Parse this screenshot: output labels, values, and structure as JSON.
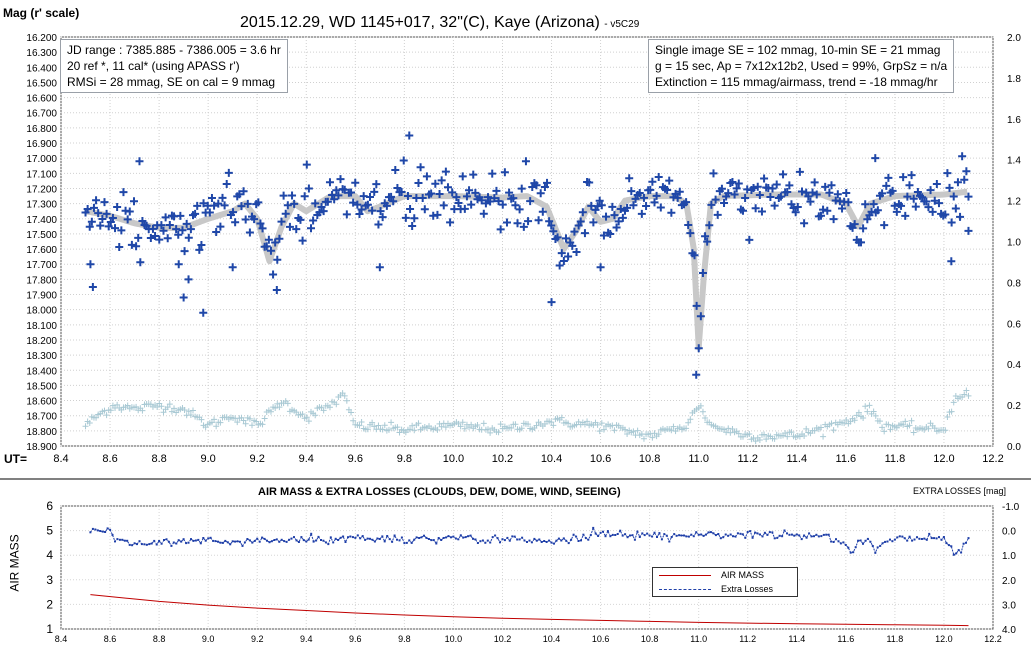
{
  "chart_data": [
    {
      "type": "scatter",
      "title": "2015.12.29,  WD 1145+017,  32\"(C),  Kaye (Arizona)",
      "title_suffix": "- v5C29",
      "ylabel": "Mag (r' scale)",
      "xlabel": "UT=",
      "xlim": [
        8.4,
        12.2
      ],
      "ylim_left": [
        16.2,
        18.9
      ],
      "y_left_inverted": true,
      "ylim_right": [
        0.0,
        2.0
      ],
      "x_ticks": [
        "8.4",
        "8.6",
        "8.8",
        "9.0",
        "9.2",
        "9.4",
        "9.6",
        "9.8",
        "10.0",
        "10.2",
        "10.4",
        "10.6",
        "10.8",
        "11.0",
        "11.2",
        "11.4",
        "11.6",
        "11.8",
        "12.0",
        "12.2"
      ],
      "y_left_ticks": [
        "16.200",
        "16.300",
        "16.400",
        "16.500",
        "16.600",
        "16.700",
        "16.800",
        "16.900",
        "17.000",
        "17.100",
        "17.200",
        "17.300",
        "17.400",
        "17.500",
        "17.600",
        "17.700",
        "17.800",
        "17.900",
        "18.000",
        "18.100",
        "18.200",
        "18.300",
        "18.400",
        "18.500",
        "18.600",
        "18.700",
        "18.800",
        "18.900"
      ],
      "y_right_ticks": [
        "0.0",
        "0.2",
        "0.4",
        "0.6",
        "0.8",
        "1.0",
        "1.2",
        "1.4",
        "1.6",
        "1.8",
        "2.0"
      ],
      "grid": true,
      "info_left": [
        "JD range  : 7385.885 - 7386.005  = 3.6 hr",
        " 20 ref *, 11 cal* (using APASS r')",
        "RMSi = 28 mmag, SE on cal = 9 mmag"
      ],
      "info_right": [
        "Single image SE = 102 mmag, 10-min SE = 21 mmag",
        "g = 15 sec, Ap = 7x12x12b2,  Used = 99%, GrpSz = n/a",
        "Extinction = 115 mmag/airmass,  trend = -18 mmag/hr"
      ],
      "series": [
        {
          "marker": "plus",
          "color": "#1f47a8",
          "axis": "left",
          "trend": [
            [
              8.5,
              17.35
            ],
            [
              8.6,
              17.38
            ],
            [
              8.7,
              17.43
            ],
            [
              8.8,
              17.46
            ],
            [
              8.9,
              17.46
            ],
            [
              9.0,
              17.4
            ],
            [
              9.1,
              17.35
            ],
            [
              9.15,
              17.3
            ],
            [
              9.2,
              17.4
            ],
            [
              9.25,
              17.68
            ],
            [
              9.3,
              17.45
            ],
            [
              9.35,
              17.3
            ],
            [
              9.4,
              17.35
            ],
            [
              9.45,
              17.3
            ],
            [
              9.5,
              17.25
            ],
            [
              9.6,
              17.25
            ],
            [
              9.65,
              17.35
            ],
            [
              9.7,
              17.32
            ],
            [
              9.8,
              17.25
            ],
            [
              10.0,
              17.25
            ],
            [
              10.2,
              17.26
            ],
            [
              10.3,
              17.25
            ],
            [
              10.38,
              17.32
            ],
            [
              10.45,
              17.6
            ],
            [
              10.5,
              17.48
            ],
            [
              10.55,
              17.32
            ],
            [
              10.6,
              17.42
            ],
            [
              10.65,
              17.4
            ],
            [
              10.7,
              17.28
            ],
            [
              10.8,
              17.25
            ],
            [
              10.9,
              17.25
            ],
            [
              10.95,
              17.3
            ],
            [
              10.98,
              17.6
            ],
            [
              11.0,
              18.25
            ],
            [
              11.02,
              17.8
            ],
            [
              11.05,
              17.3
            ],
            [
              11.1,
              17.25
            ],
            [
              11.3,
              17.24
            ],
            [
              11.5,
              17.24
            ],
            [
              11.6,
              17.3
            ],
            [
              11.65,
              17.45
            ],
            [
              11.7,
              17.3
            ],
            [
              11.8,
              17.25
            ],
            [
              12.0,
              17.24
            ],
            [
              12.1,
              17.22
            ]
          ],
          "scatter_sigma": 0.09,
          "outliers": [
            [
              8.52,
              17.7
            ],
            [
              8.53,
              17.85
            ],
            [
              8.72,
              17.02
            ],
            [
              8.88,
              17.7
            ],
            [
              8.9,
              17.92
            ],
            [
              8.92,
              17.8
            ],
            [
              8.98,
              18.02
            ],
            [
              9.1,
              17.72
            ],
            [
              9.28,
              17.87
            ],
            [
              9.7,
              17.72
            ],
            [
              9.82,
              16.85
            ],
            [
              10.4,
              17.95
            ],
            [
              10.6,
              17.72
            ],
            [
              10.99,
              18.43
            ],
            [
              11.72,
              17.0
            ],
            [
              12.03,
              17.68
            ],
            [
              12.1,
              17.48
            ]
          ],
          "n_points": 420
        },
        {
          "marker": "plus",
          "color": "#a9c9d4",
          "axis": "right",
          "baseline": [
            [
              8.5,
              0.1
            ],
            [
              8.55,
              0.15
            ],
            [
              8.62,
              0.2
            ],
            [
              8.7,
              0.18
            ],
            [
              8.8,
              0.2
            ],
            [
              8.9,
              0.18
            ],
            [
              9.0,
              0.1
            ],
            [
              9.1,
              0.15
            ],
            [
              9.2,
              0.1
            ],
            [
              9.3,
              0.22
            ],
            [
              9.4,
              0.14
            ],
            [
              9.5,
              0.2
            ],
            [
              9.55,
              0.25
            ],
            [
              9.6,
              0.1
            ],
            [
              9.8,
              0.08
            ],
            [
              10.0,
              0.1
            ],
            [
              10.2,
              0.08
            ],
            [
              10.4,
              0.12
            ],
            [
              10.6,
              0.1
            ],
            [
              10.8,
              0.05
            ],
            [
              10.95,
              0.1
            ],
            [
              11.0,
              0.2
            ],
            [
              11.05,
              0.1
            ],
            [
              11.2,
              0.05
            ],
            [
              11.4,
              0.05
            ],
            [
              11.6,
              0.12
            ],
            [
              11.7,
              0.18
            ],
            [
              11.75,
              0.1
            ],
            [
              12.0,
              0.08
            ],
            [
              12.05,
              0.25
            ],
            [
              12.1,
              0.25
            ]
          ],
          "n_points": 420
        }
      ]
    },
    {
      "type": "line",
      "title": "AIR MASS & EXTRA LOSSES (CLOUDS, DEW, DOME, WIND, SEEING)",
      "ylabel": "AIR MASS",
      "ylabel_right": "EXTRA LOSSES [mag]",
      "xlim": [
        8.4,
        12.2
      ],
      "ylim_left": [
        1,
        6
      ],
      "ylim_right": [
        -1.0,
        4.0
      ],
      "y_right_inverted": true,
      "x_ticks": [
        "8.4",
        "8.6",
        "8.8",
        "9.0",
        "9.2",
        "9.4",
        "9.6",
        "9.8",
        "10.0",
        "10.2",
        "10.4",
        "10.6",
        "10.8",
        "11.0",
        "11.2",
        "11.4",
        "11.6",
        "11.8",
        "12.0",
        "12.2"
      ],
      "y_left_ticks": [
        "1",
        "2",
        "3",
        "4",
        "5",
        "6"
      ],
      "y_right_ticks": [
        "-1.0",
        "0.0",
        "1.0",
        "2.0",
        "3.0",
        "4.0"
      ],
      "legend": [
        "AIR MASS",
        "Extra Losses"
      ],
      "legend_position": "center-right",
      "series": [
        {
          "name": "AIR MASS",
          "color": "#c00000",
          "axis": "left",
          "x": [
            8.52,
            8.8,
            9.0,
            9.2,
            9.4,
            9.6,
            9.8,
            10.0,
            10.2,
            10.4,
            10.6,
            10.8,
            11.0,
            11.2,
            11.4,
            11.6,
            11.8,
            12.0,
            12.1
          ],
          "y": [
            2.4,
            2.12,
            1.97,
            1.85,
            1.75,
            1.65,
            1.57,
            1.5,
            1.44,
            1.39,
            1.35,
            1.31,
            1.27,
            1.24,
            1.21,
            1.19,
            1.17,
            1.15,
            1.14
          ]
        },
        {
          "name": "Extra Losses",
          "color": "#1f3fa8",
          "axis": "right",
          "x": [
            8.52,
            8.6,
            8.62,
            8.7,
            8.8,
            8.9,
            9.0,
            9.1,
            9.2,
            9.3,
            9.4,
            9.5,
            9.6,
            9.7,
            9.8,
            9.9,
            10.0,
            10.1,
            10.2,
            10.3,
            10.4,
            10.5,
            10.6,
            10.7,
            10.8,
            10.9,
            11.0,
            11.1,
            11.2,
            11.3,
            11.4,
            11.5,
            11.55,
            11.6,
            11.62,
            11.65,
            11.7,
            11.72,
            11.75,
            11.8,
            11.9,
            12.0,
            12.02,
            12.05,
            12.08,
            12.1
          ],
          "y": [
            0.0,
            0.05,
            0.35,
            0.5,
            0.45,
            0.4,
            0.5,
            0.45,
            0.4,
            0.45,
            0.35,
            0.4,
            0.3,
            0.35,
            0.4,
            0.35,
            0.3,
            0.4,
            0.35,
            0.35,
            0.45,
            0.35,
            0.15,
            0.2,
            0.15,
            0.2,
            0.1,
            0.2,
            0.15,
            0.2,
            0.15,
            0.2,
            0.3,
            0.6,
            0.9,
            0.5,
            0.4,
            0.8,
            0.5,
            0.25,
            0.3,
            0.3,
            0.5,
            1.0,
            0.7,
            0.35
          ]
        }
      ]
    }
  ]
}
